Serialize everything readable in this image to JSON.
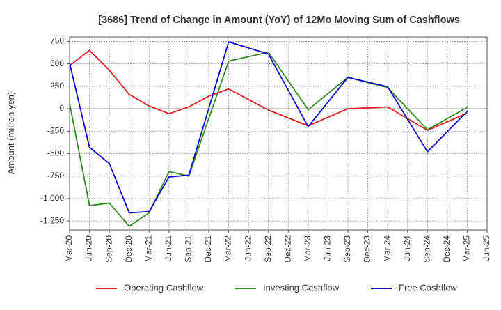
{
  "chart_data": {
    "type": "line",
    "title": "[3686]  Trend of Change in Amount (YoY) of 12Mo Moving Sum of Cashflows",
    "xlabel": "",
    "ylabel": "Amount (million yen)",
    "ylim": [
      -1350,
      800
    ],
    "yticks": [
      750,
      500,
      250,
      0,
      -250,
      -500,
      -750,
      -1000,
      -1250
    ],
    "ytick_labels": [
      "750",
      "500",
      "250",
      "0",
      "-250",
      "-500",
      "-750",
      "-1,000",
      "-1,250"
    ],
    "categories": [
      "Mar-20",
      "Jun-20",
      "Sep-20",
      "Dec-20",
      "Mar-21",
      "Jun-21",
      "Sep-21",
      "Dec-21",
      "Mar-22",
      "Jun-22",
      "Sep-22",
      "Dec-22",
      "Mar-23",
      "Jun-23",
      "Sep-23",
      "Dec-23",
      "Mar-24",
      "Jun-24",
      "Sep-24",
      "Dec-24",
      "Mar-25",
      "Jun-25"
    ],
    "grid": true,
    "legend_position": "bottom",
    "series": [
      {
        "name": "Operating Cashflow",
        "color": "#e31a1c",
        "values": [
          480,
          650,
          430,
          160,
          30,
          -55,
          20,
          140,
          220,
          null,
          -15,
          null,
          -190,
          null,
          0,
          null,
          20,
          null,
          -240,
          null,
          -50,
          null
        ]
      },
      {
        "name": "Investing Cashflow",
        "color": "#2e8b22",
        "values": [
          60,
          -1080,
          -1050,
          -1310,
          -1160,
          -700,
          -750,
          null,
          530,
          null,
          630,
          null,
          -10,
          null,
          350,
          null,
          235,
          null,
          -235,
          null,
          15,
          null
        ]
      },
      {
        "name": "Free Cashflow",
        "color": "#0a0ad2",
        "values": [
          510,
          -430,
          -610,
          -1160,
          -1145,
          -760,
          -740,
          null,
          745,
          null,
          610,
          null,
          -200,
          null,
          350,
          null,
          245,
          null,
          -480,
          null,
          -30,
          null
        ]
      }
    ]
  }
}
